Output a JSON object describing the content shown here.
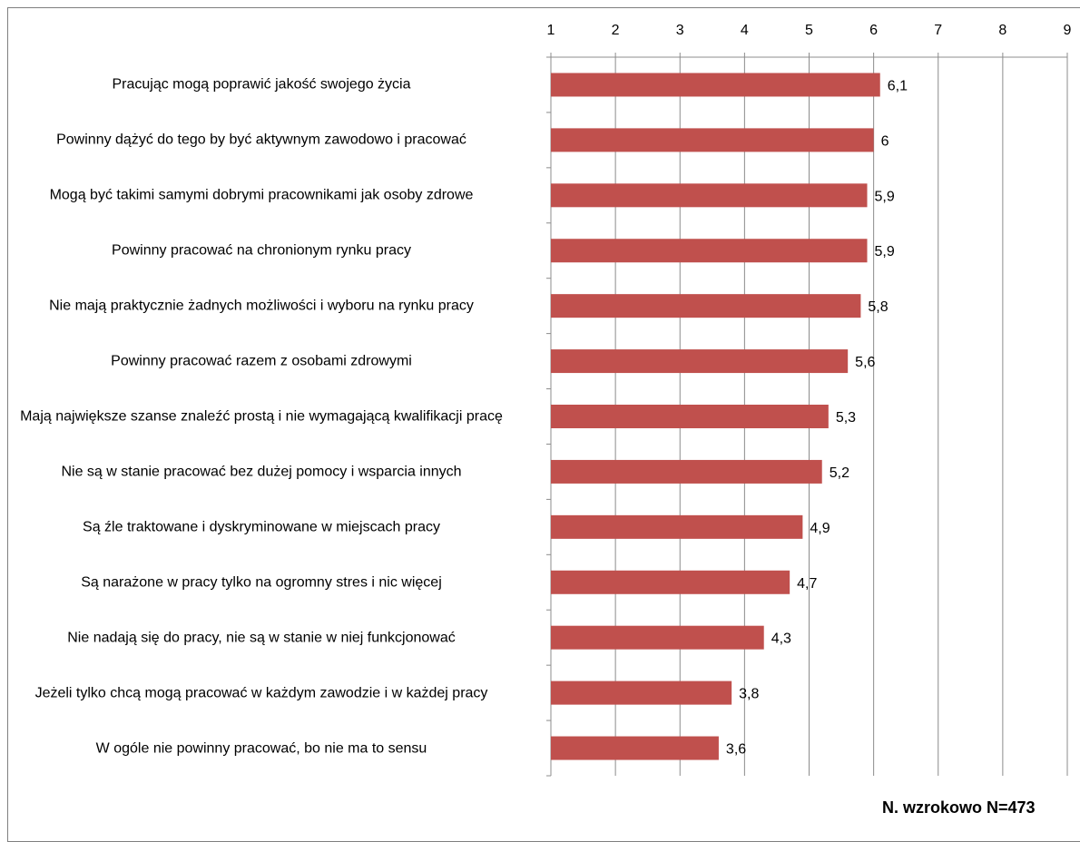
{
  "chart_data": {
    "type": "bar",
    "orientation": "horizontal",
    "categories": [
      "Pracując mogą poprawić jakość swojego życia",
      "Powinny dążyć do tego by być aktywnym zawodowo i pracować",
      "Mogą być takimi samymi dobrymi pracownikami jak osoby zdrowe",
      "Powinny pracować na chronionym rynku pracy",
      "Nie mają praktycznie żadnych możliwości i wyboru na rynku pracy",
      "Powinny pracować razem z osobami zdrowymi",
      "Mają największe szanse znaleźć prostą i nie wymagającą kwalifikacji pracę",
      "Nie są w stanie pracować bez dużej pomocy i wsparcia innych",
      "Są źle traktowane i dyskryminowane w miejscach pracy",
      "Są narażone w pracy tylko na ogromny stres i nic więcej",
      "Nie nadają się do pracy, nie są w stanie w niej funkcjonować",
      "Jeżeli tylko chcą mogą  pracować w każdym zawodzie i w każdej pracy",
      "W ogóle nie powinny pracować, bo nie ma to sensu"
    ],
    "values": [
      6.1,
      6,
      5.9,
      5.9,
      5.8,
      5.6,
      5.3,
      5.2,
      4.9,
      4.7,
      4.3,
      3.8,
      3.6
    ],
    "value_labels": [
      "6,1",
      "6",
      "5,9",
      "5,9",
      "5,8",
      "5,6",
      "5,3",
      "5,2",
      "4,9",
      "4,7",
      "4,3",
      "3,8",
      "3,6"
    ],
    "xlim": [
      1,
      9
    ],
    "x_ticks": [
      "1",
      "2",
      "3",
      "4",
      "5",
      "6",
      "7",
      "8",
      "9"
    ],
    "grid": true,
    "axis_position": "top",
    "bar_color": "#c0504d",
    "note": "N. wzrokowo N=473"
  }
}
